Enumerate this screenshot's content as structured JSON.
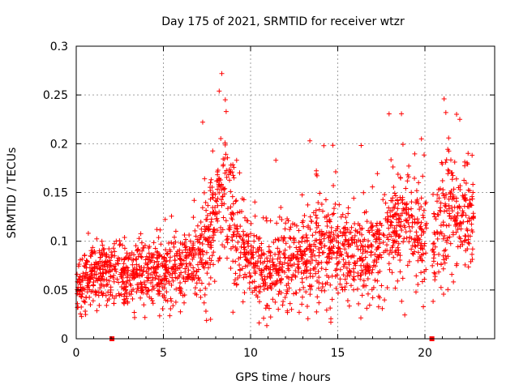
{
  "chart_data": {
    "type": "scatter",
    "title": "Day 175 of 2021, SRMTID for receiver wtzr",
    "xlabel": "GPS time / hours",
    "ylabel": "SRMTID / TECUs",
    "xlim": [
      0,
      24
    ],
    "ylim": [
      0,
      0.3
    ],
    "xticks": [
      0,
      5,
      10,
      15,
      20
    ],
    "xtick_labels": [
      "0",
      "5",
      "10",
      "15",
      "20"
    ],
    "yticks": [
      0,
      0.05,
      0.1,
      0.15,
      0.2,
      0.25,
      0.3
    ],
    "ytick_labels": [
      "0",
      "0.05",
      "0.1",
      "0.15",
      "0.2",
      "0.25",
      "0.3"
    ],
    "grid": true,
    "marker": "plus",
    "color": "#ff0000",
    "series": [
      {
        "name": "SRMTID",
        "x_range": [
          0,
          22.8
        ],
        "point_count": 2200,
        "trend": [
          {
            "x": 0.0,
            "y": 0.05,
            "spread": 0.018
          },
          {
            "x": 1.0,
            "y": 0.065,
            "spread": 0.02
          },
          {
            "x": 2.0,
            "y": 0.07,
            "spread": 0.02
          },
          {
            "x": 3.0,
            "y": 0.065,
            "spread": 0.022
          },
          {
            "x": 4.0,
            "y": 0.068,
            "spread": 0.022
          },
          {
            "x": 5.0,
            "y": 0.07,
            "spread": 0.02
          },
          {
            "x": 6.0,
            "y": 0.07,
            "spread": 0.022
          },
          {
            "x": 7.0,
            "y": 0.08,
            "spread": 0.025
          },
          {
            "x": 7.7,
            "y": 0.11,
            "spread": 0.04
          },
          {
            "x": 8.3,
            "y": 0.16,
            "spread": 0.05
          },
          {
            "x": 8.8,
            "y": 0.13,
            "spread": 0.04
          },
          {
            "x": 9.2,
            "y": 0.1,
            "spread": 0.03
          },
          {
            "x": 10.0,
            "y": 0.08,
            "spread": 0.025
          },
          {
            "x": 11.0,
            "y": 0.065,
            "spread": 0.025
          },
          {
            "x": 12.0,
            "y": 0.075,
            "spread": 0.028
          },
          {
            "x": 13.0,
            "y": 0.085,
            "spread": 0.03
          },
          {
            "x": 14.0,
            "y": 0.095,
            "spread": 0.035
          },
          {
            "x": 15.0,
            "y": 0.09,
            "spread": 0.03
          },
          {
            "x": 16.0,
            "y": 0.085,
            "spread": 0.03
          },
          {
            "x": 17.0,
            "y": 0.09,
            "spread": 0.03
          },
          {
            "x": 18.0,
            "y": 0.11,
            "spread": 0.035
          },
          {
            "x": 19.0,
            "y": 0.12,
            "spread": 0.04
          },
          {
            "x": 19.9,
            "y": 0.1,
            "spread": 0.04
          },
          {
            "x": 20.8,
            "y": 0.1,
            "spread": 0.035
          },
          {
            "x": 21.5,
            "y": 0.13,
            "spread": 0.04
          },
          {
            "x": 22.8,
            "y": 0.12,
            "spread": 0.035
          }
        ],
        "peaks": [
          {
            "x": 8.35,
            "y": 0.272
          },
          {
            "x": 8.2,
            "y": 0.254
          },
          {
            "x": 8.55,
            "y": 0.245
          },
          {
            "x": 8.6,
            "y": 0.233
          },
          {
            "x": 21.1,
            "y": 0.246
          },
          {
            "x": 21.2,
            "y": 0.232
          },
          {
            "x": 22.0,
            "y": 0.225
          },
          {
            "x": 13.4,
            "y": 0.203
          },
          {
            "x": 19.8,
            "y": 0.205
          },
          {
            "x": 14.2,
            "y": 0.198
          },
          {
            "x": 11.45,
            "y": 0.183
          },
          {
            "x": 9.2,
            "y": 0.183
          }
        ]
      }
    ],
    "gap_markers": [
      {
        "x": 2.05,
        "y": 0
      },
      {
        "x": 20.4,
        "y": 0
      }
    ]
  }
}
